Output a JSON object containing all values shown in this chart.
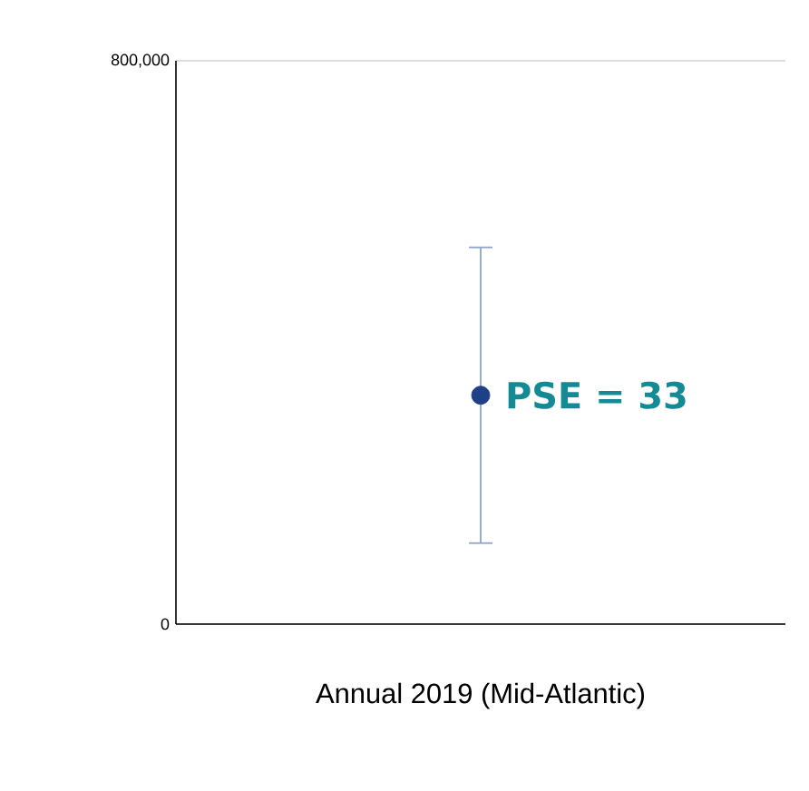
{
  "chart_data": {
    "type": "scatter",
    "xlabel": "Annual 2019 (Mid-Atlantic)",
    "categories": [
      null
    ],
    "series": [
      {
        "color": "#1f3f87",
        "values": [
          325000
        ],
        "errors": [
          [
            115000,
            535000
          ]
        ]
      }
    ],
    "annotations": [
      "PSE = 33"
    ],
    "ylim": [
      0,
      800000
    ],
    "yticks": [
      0,
      {
        "value": 800000,
        "label": "800,000"
      }
    ],
    "grid": "y",
    "marker": "circle"
  }
}
